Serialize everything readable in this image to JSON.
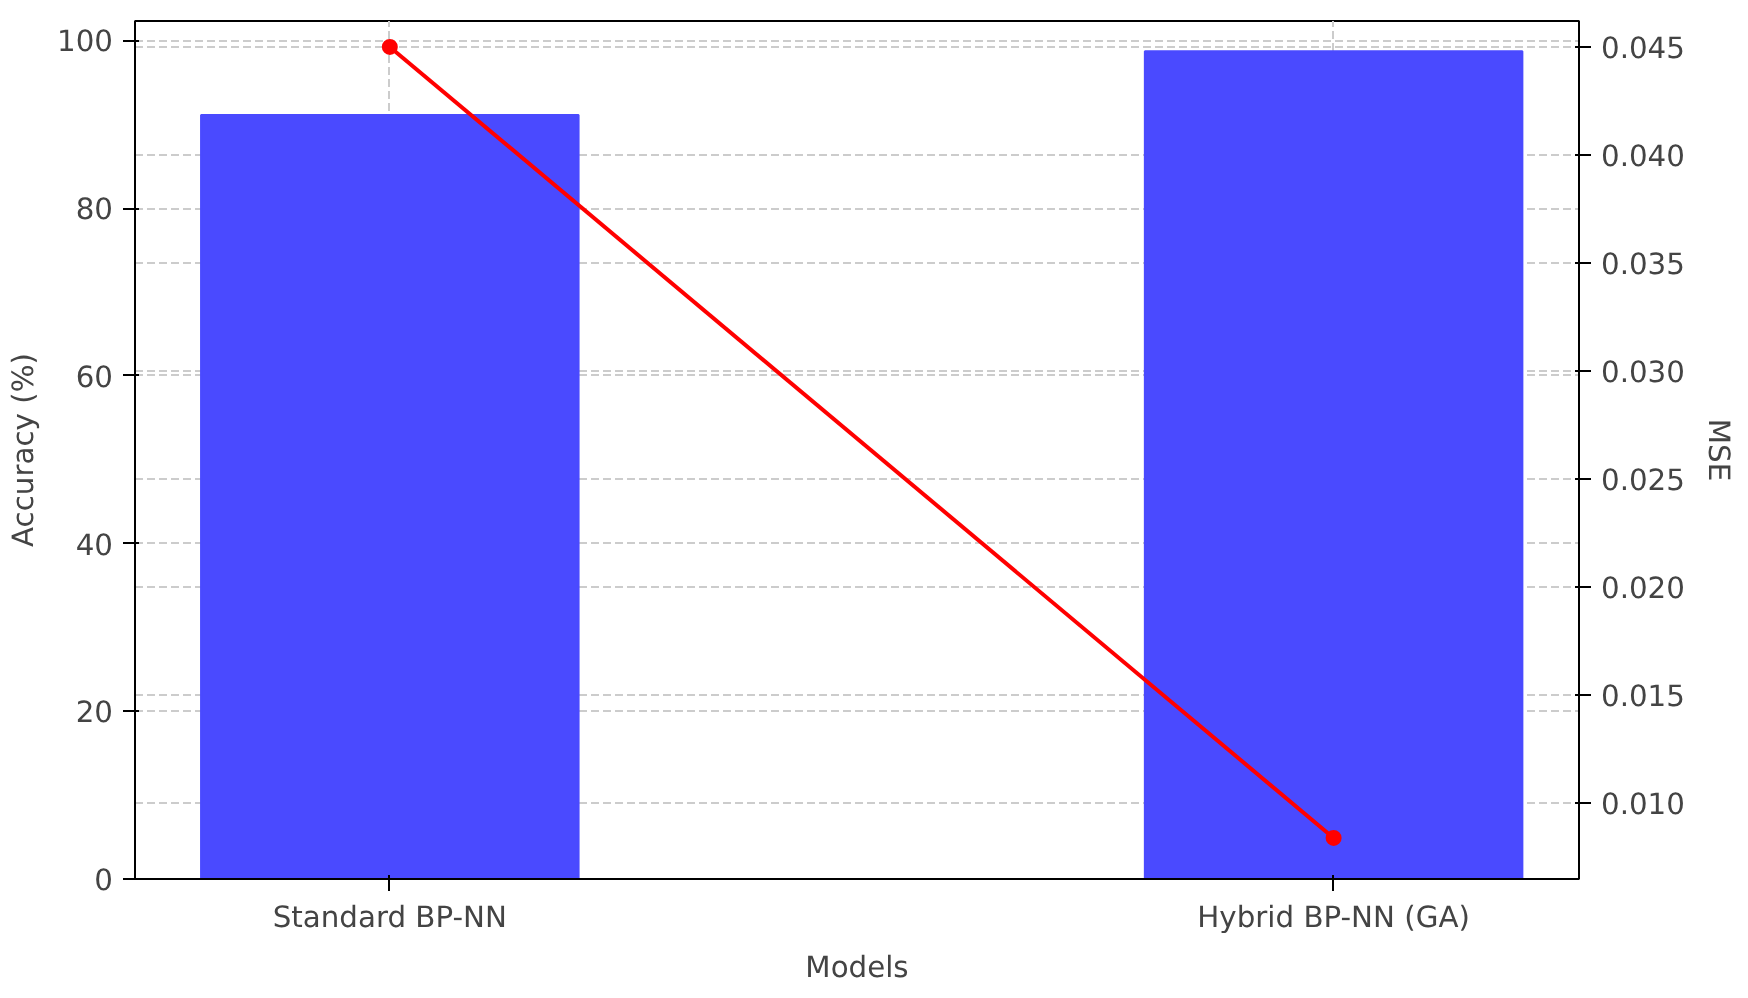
{
  "chart_data": {
    "type": "bar",
    "xlabel": "Models",
    "ylabel": "Accuracy (%)",
    "y2label": "MSE",
    "categories": [
      "Standard BP-NN",
      "Hybrid BP-NN (GA)"
    ],
    "series": [
      {
        "color": "#4a4aff",
        "values": [
          91.1,
          98.7
        ]
      },
      {
        "type": "line",
        "color": "#ff0000",
        "axis": "y2",
        "values": [
          0.045,
          0.0084
        ]
      }
    ],
    "ylim": [
      0,
      102.3
    ],
    "yticks": [
      0,
      20,
      40,
      60,
      80,
      100
    ],
    "y2lim": [
      0.0065,
      0.0462
    ],
    "y2ticks": [
      {
        "value": 0.01,
        "label": "0.010"
      },
      0.015,
      {
        "value": 0.02,
        "label": "0.020"
      },
      0.025,
      {
        "value": 0.03,
        "label": "0.030"
      },
      0.035,
      {
        "value": 0.04,
        "label": "0.040"
      },
      0.045
    ],
    "grid": true,
    "marker": "circle",
    "line_style": "solid"
  }
}
